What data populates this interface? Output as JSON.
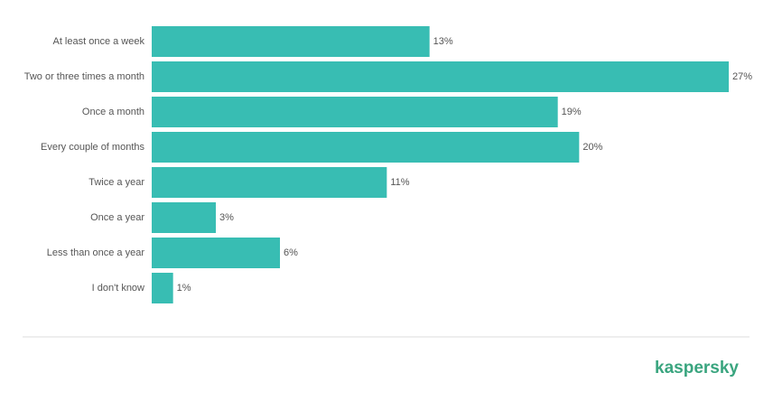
{
  "chart_data": {
    "type": "barh",
    "categories": [
      "At least once a week",
      "Two or three times a month",
      "Once a month",
      "Every couple of months",
      "Twice a year",
      "Once a year",
      "Less than once a year",
      "I don't know"
    ],
    "values": [
      13,
      27,
      19,
      20,
      11,
      3,
      6,
      1
    ],
    "value_labels": [
      "13%",
      "27%",
      "19%",
      "20%",
      "11%",
      "3%",
      "6%",
      "1%"
    ],
    "color": "#38bdb3"
  },
  "brand": "kaspersky"
}
